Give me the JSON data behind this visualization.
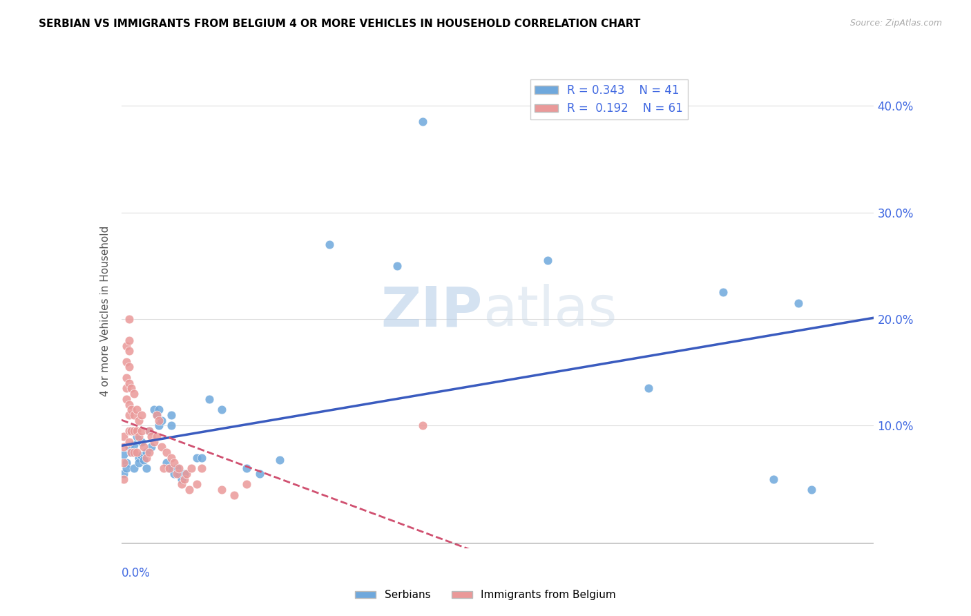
{
  "title": "SERBIAN VS IMMIGRANTS FROM BELGIUM 4 OR MORE VEHICLES IN HOUSEHOLD CORRELATION CHART",
  "source": "Source: ZipAtlas.com",
  "ylabel": "4 or more Vehicles in Household",
  "xlim": [
    0.0,
    0.3
  ],
  "ylim": [
    -0.015,
    0.43
  ],
  "color_serbian": "#6fa8dc",
  "color_belgium": "#ea9999",
  "color_line_serbian": "#3a5bbf",
  "color_line_belgium": "#d05070",
  "watermark_zip": "ZIP",
  "watermark_atlas": "atlas",
  "serbian_points": [
    [
      0.001,
      0.073
    ],
    [
      0.002,
      0.065
    ],
    [
      0.001,
      0.055
    ],
    [
      0.002,
      0.06
    ],
    [
      0.003,
      0.08
    ],
    [
      0.004,
      0.095
    ],
    [
      0.004,
      0.075
    ],
    [
      0.005,
      0.082
    ],
    [
      0.005,
      0.06
    ],
    [
      0.006,
      0.09
    ],
    [
      0.007,
      0.07
    ],
    [
      0.007,
      0.065
    ],
    [
      0.008,
      0.085
    ],
    [
      0.008,
      0.072
    ],
    [
      0.009,
      0.068
    ],
    [
      0.01,
      0.075
    ],
    [
      0.01,
      0.06
    ],
    [
      0.011,
      0.095
    ],
    [
      0.012,
      0.08
    ],
    [
      0.013,
      0.115
    ],
    [
      0.014,
      0.11
    ],
    [
      0.015,
      0.115
    ],
    [
      0.015,
      0.1
    ],
    [
      0.016,
      0.105
    ],
    [
      0.018,
      0.065
    ],
    [
      0.019,
      0.06
    ],
    [
      0.02,
      0.11
    ],
    [
      0.02,
      0.1
    ],
    [
      0.021,
      0.055
    ],
    [
      0.022,
      0.06
    ],
    [
      0.023,
      0.055
    ],
    [
      0.024,
      0.05
    ],
    [
      0.025,
      0.055
    ],
    [
      0.03,
      0.07
    ],
    [
      0.032,
      0.07
    ],
    [
      0.035,
      0.125
    ],
    [
      0.04,
      0.115
    ],
    [
      0.05,
      0.06
    ],
    [
      0.055,
      0.055
    ],
    [
      0.063,
      0.068
    ],
    [
      0.083,
      0.27
    ],
    [
      0.11,
      0.25
    ],
    [
      0.12,
      0.385
    ],
    [
      0.17,
      0.255
    ],
    [
      0.21,
      0.135
    ],
    [
      0.24,
      0.225
    ],
    [
      0.26,
      0.05
    ],
    [
      0.27,
      0.215
    ],
    [
      0.275,
      0.04
    ]
  ],
  "belgium_points": [
    [
      0.001,
      0.09
    ],
    [
      0.001,
      0.08
    ],
    [
      0.001,
      0.065
    ],
    [
      0.001,
      0.05
    ],
    [
      0.002,
      0.175
    ],
    [
      0.002,
      0.16
    ],
    [
      0.002,
      0.145
    ],
    [
      0.002,
      0.135
    ],
    [
      0.002,
      0.125
    ],
    [
      0.003,
      0.2
    ],
    [
      0.003,
      0.18
    ],
    [
      0.003,
      0.17
    ],
    [
      0.003,
      0.155
    ],
    [
      0.003,
      0.14
    ],
    [
      0.003,
      0.12
    ],
    [
      0.003,
      0.11
    ],
    [
      0.003,
      0.095
    ],
    [
      0.003,
      0.085
    ],
    [
      0.004,
      0.135
    ],
    [
      0.004,
      0.115
    ],
    [
      0.004,
      0.095
    ],
    [
      0.004,
      0.075
    ],
    [
      0.005,
      0.13
    ],
    [
      0.005,
      0.11
    ],
    [
      0.005,
      0.095
    ],
    [
      0.005,
      0.075
    ],
    [
      0.006,
      0.115
    ],
    [
      0.006,
      0.095
    ],
    [
      0.006,
      0.075
    ],
    [
      0.007,
      0.105
    ],
    [
      0.007,
      0.09
    ],
    [
      0.008,
      0.11
    ],
    [
      0.008,
      0.095
    ],
    [
      0.009,
      0.08
    ],
    [
      0.01,
      0.07
    ],
    [
      0.011,
      0.095
    ],
    [
      0.011,
      0.075
    ],
    [
      0.012,
      0.09
    ],
    [
      0.013,
      0.085
    ],
    [
      0.014,
      0.11
    ],
    [
      0.014,
      0.09
    ],
    [
      0.015,
      0.105
    ],
    [
      0.016,
      0.08
    ],
    [
      0.017,
      0.06
    ],
    [
      0.018,
      0.075
    ],
    [
      0.019,
      0.06
    ],
    [
      0.02,
      0.07
    ],
    [
      0.021,
      0.065
    ],
    [
      0.022,
      0.055
    ],
    [
      0.023,
      0.06
    ],
    [
      0.024,
      0.045
    ],
    [
      0.025,
      0.05
    ],
    [
      0.026,
      0.055
    ],
    [
      0.027,
      0.04
    ],
    [
      0.028,
      0.06
    ],
    [
      0.03,
      0.045
    ],
    [
      0.032,
      0.06
    ],
    [
      0.04,
      0.04
    ],
    [
      0.045,
      0.035
    ],
    [
      0.05,
      0.045
    ],
    [
      0.12,
      0.1
    ]
  ],
  "ytick_vals": [
    0.1,
    0.2,
    0.3,
    0.4
  ],
  "ytick_labels": [
    "10.0%",
    "20.0%",
    "30.0%",
    "40.0%"
  ]
}
